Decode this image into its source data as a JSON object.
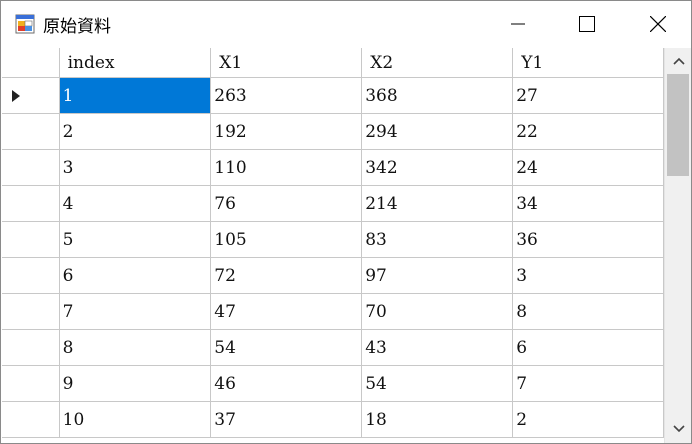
{
  "window": {
    "title": "原始資料"
  },
  "grid": {
    "columns": [
      "index",
      "X1",
      "X2",
      "Y1"
    ],
    "rows": [
      [
        "1",
        "263",
        "368",
        "27"
      ],
      [
        "2",
        "192",
        "294",
        "22"
      ],
      [
        "3",
        "110",
        "342",
        "24"
      ],
      [
        "4",
        "76",
        "214",
        "34"
      ],
      [
        "5",
        "105",
        "83",
        "36"
      ],
      [
        "6",
        "72",
        "97",
        "3"
      ],
      [
        "7",
        "47",
        "70",
        "8"
      ],
      [
        "8",
        "54",
        "43",
        "6"
      ],
      [
        "9",
        "46",
        "54",
        "7"
      ],
      [
        "10",
        "37",
        "18",
        "2"
      ]
    ],
    "current_row": 0,
    "selected_cell_color": "#0078d7"
  },
  "icons": {
    "app": "form-app-icon",
    "minimize": "minimize-icon",
    "maximize": "maximize-icon",
    "close": "close-icon",
    "current_row": "current-row-arrow-icon",
    "scroll_up": "chevron-up-icon",
    "scroll_down": "chevron-down-icon"
  }
}
